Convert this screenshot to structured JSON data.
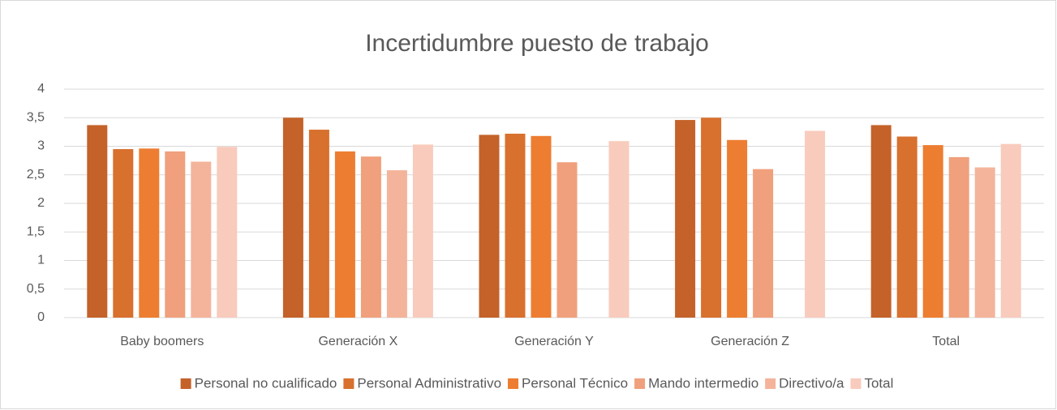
{
  "chart_data": {
    "type": "bar",
    "title": "Incertidumbre puesto de trabajo",
    "categories": [
      "Baby boomers",
      "Generación X",
      "Generación Y",
      "Generación Z",
      "Total"
    ],
    "series": [
      {
        "name": "Personal no cualificado",
        "color": "#c4622a",
        "values": [
          3.37,
          3.5,
          3.2,
          3.46,
          3.37
        ]
      },
      {
        "name": "Personal Administrativo",
        "color": "#d8702e",
        "values": [
          2.95,
          3.29,
          3.22,
          3.5,
          3.17
        ]
      },
      {
        "name": "Personal Técnico",
        "color": "#ed7d31",
        "values": [
          2.96,
          2.91,
          3.18,
          3.11,
          3.02
        ]
      },
      {
        "name": "Mando intermedio",
        "color": "#f0a07c",
        "values": [
          2.91,
          2.82,
          2.72,
          2.6,
          2.81
        ]
      },
      {
        "name": "Directivo/a",
        "color": "#f4b49b",
        "values": [
          2.73,
          2.58,
          null,
          null,
          2.63
        ]
      },
      {
        "name": "Total",
        "color": "#f8cbbd",
        "values": [
          2.99,
          3.03,
          3.09,
          3.27,
          3.04
        ]
      }
    ],
    "ylim": [
      0,
      4
    ],
    "yticks": [
      0,
      {
        "value": 0.5,
        "label": "0,5"
      },
      1,
      {
        "value": 1.5,
        "label": "1,5"
      },
      2,
      {
        "value": 2.5,
        "label": "2,5"
      },
      3,
      {
        "value": 3.5,
        "label": "3,5"
      },
      4
    ],
    "grid": true,
    "legend": "bottom"
  }
}
